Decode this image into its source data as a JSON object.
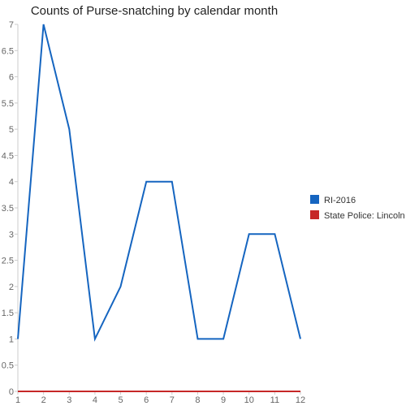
{
  "chart_data": {
    "type": "line",
    "title": "Counts of Purse-snatching by calendar month",
    "xlabel": "",
    "ylabel": "",
    "x": [
      1,
      2,
      3,
      4,
      5,
      6,
      7,
      8,
      9,
      10,
      11,
      12
    ],
    "x_ticks": [
      "1",
      "2",
      "3",
      "4",
      "5",
      "6",
      "7",
      "8",
      "9",
      "10",
      "11",
      "12"
    ],
    "xlim": [
      1,
      12
    ],
    "ylim": [
      0,
      7
    ],
    "y_ticks": [
      "0",
      "0.5",
      "1",
      "1.5",
      "2",
      "2.5",
      "3",
      "3.5",
      "4",
      "4.5",
      "5",
      "5.5",
      "6",
      "6.5",
      "7"
    ],
    "grid": false,
    "legend_position": "right",
    "series": [
      {
        "name": "RI-2016",
        "color": "#1565c0",
        "values": [
          1,
          7,
          5,
          1,
          2,
          4,
          4,
          1,
          1,
          3,
          3,
          1
        ]
      },
      {
        "name": "State Police: Lincoln",
        "color": "#c62828",
        "values": [
          0,
          0,
          0,
          0,
          0,
          0,
          0,
          0,
          0,
          0,
          0,
          0
        ]
      }
    ]
  }
}
